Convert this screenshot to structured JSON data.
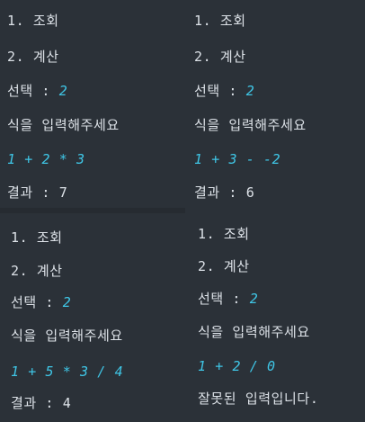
{
  "panels": [
    {
      "menu1": "1. 조회",
      "menu2": "2. 계산",
      "select_label": "선택 : ",
      "select_value": "2",
      "prompt": "식을 입력해주세요",
      "expression": "1 + 2 * 3",
      "result": "결과 : 7"
    },
    {
      "menu1": "1. 조회",
      "menu2": "2. 계산",
      "select_label": "선택 : ",
      "select_value": "2",
      "prompt": "식을 입력해주세요",
      "expression": "1 + 3 - -2",
      "result": "결과 : 6"
    },
    {
      "menu1": "1. 조회",
      "menu2": "2. 계산",
      "select_label": "선택 : ",
      "select_value": "2",
      "prompt": "식을 입력해주세요",
      "expression": "1 + 5 * 3 / 4",
      "result": "결과 : 4"
    },
    {
      "menu1": "1. 조회",
      "menu2": "2. 계산",
      "select_label": "선택 : ",
      "select_value": "2",
      "prompt": "식을 입력해주세요",
      "expression": "1 + 2 / 0",
      "result": "잘못된 입력입니다."
    }
  ],
  "colors": {
    "background": "#2b3138",
    "text": "#dde2e8",
    "input_accent": "#3fc6e6"
  }
}
